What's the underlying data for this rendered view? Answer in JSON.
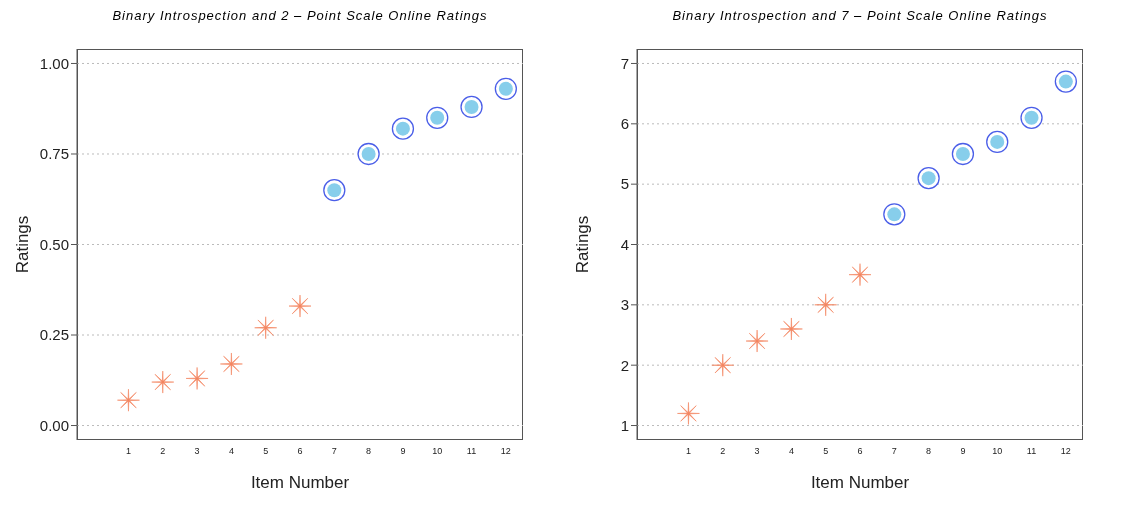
{
  "chart_data": [
    {
      "type": "scatter",
      "title": "Binary Introspection  and  2 – Point Scale Online Ratings",
      "xlabel": "Item Number",
      "ylabel": "Ratings",
      "series": [
        {
          "x": [
            1,
            2,
            3,
            4,
            5,
            6
          ],
          "values": [
            0.07,
            0.12,
            0.13,
            0.17,
            0.27,
            0.33
          ],
          "color": "#f4845f",
          "marker": "cross"
        },
        {
          "x": [
            7,
            8,
            9,
            10,
            11,
            12
          ],
          "values": [
            0.65,
            0.75,
            0.82,
            0.85,
            0.88,
            0.93
          ],
          "color": "#87ceeb",
          "marker": "circle"
        }
      ],
      "xlim": [
        -0.5,
        12.5
      ],
      "xticks": [
        1,
        2,
        3,
        4,
        5,
        6,
        7,
        8,
        9,
        10,
        11,
        12
      ],
      "ylim": [
        -0.04,
        1.04
      ],
      "yticks": [
        {
          "value": 0,
          "label": "0.00"
        },
        0.25,
        {
          "value": 0.5,
          "label": "0.50"
        },
        0.75,
        {
          "value": 1,
          "label": "1.00"
        }
      ],
      "grid": "y",
      "legend": false
    },
    {
      "type": "scatter",
      "title": "Binary Introspection  and  7 – Point Scale Online Ratings",
      "xlabel": "Item Number",
      "ylabel": "Ratings",
      "series": [
        {
          "x": [
            1,
            2,
            3,
            4,
            5,
            6
          ],
          "values": [
            1.2,
            2.0,
            2.4,
            2.6,
            3.0,
            3.5
          ],
          "color": "#f4845f",
          "marker": "cross"
        },
        {
          "x": [
            7,
            8,
            9,
            10,
            11,
            12
          ],
          "values": [
            4.5,
            5.1,
            5.5,
            5.7,
            6.1,
            6.7
          ],
          "color": "#87ceeb",
          "marker": "circle"
        }
      ],
      "xlim": [
        -0.5,
        12.5
      ],
      "xticks": [
        1,
        2,
        3,
        4,
        5,
        6,
        7,
        8,
        9,
        10,
        11,
        12
      ],
      "ylim": [
        0.76,
        7.24
      ],
      "yticks": [
        1,
        2,
        3,
        4,
        5,
        6,
        7
      ],
      "grid": "y",
      "legend": false
    }
  ]
}
